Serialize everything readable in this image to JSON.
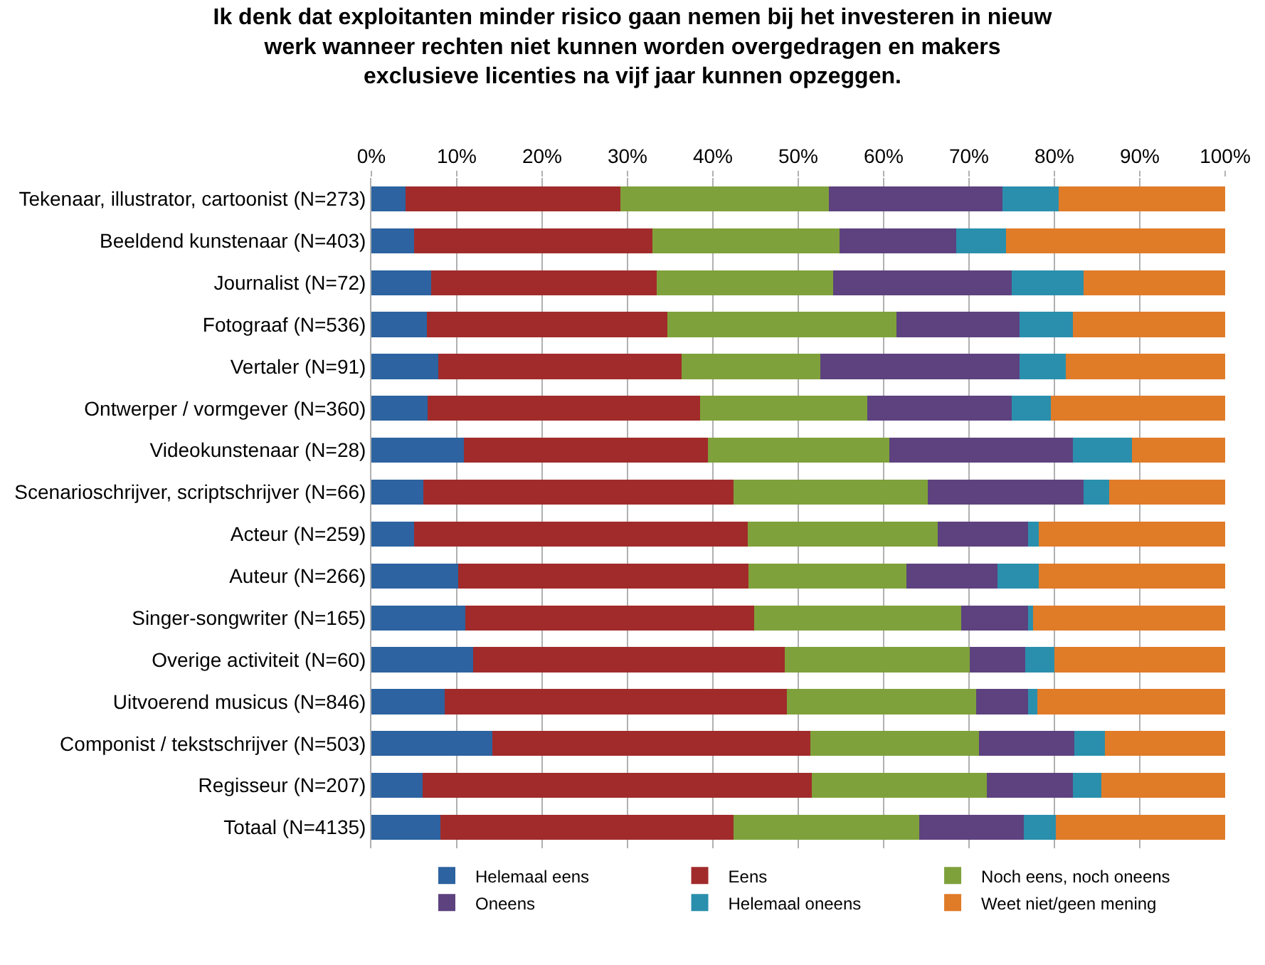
{
  "chart_data": {
    "type": "bar",
    "orientation": "horizontal",
    "stacked": true,
    "title": "Ik denk dat exploitanten minder risico gaan nemen bij het investeren in nieuw\nwerk wanneer rechten niet kunnen worden overgedragen en makers\nexclusieve licenties na vijf jaar kunnen opzeggen.",
    "categories": [
      "Tekenaar, illustrator, cartoonist (N=273)",
      "Beeldend kunstenaar (N=403)",
      "Journalist (N=72)",
      "Fotograaf (N=536)",
      "Vertaler (N=91)",
      "Ontwerper / vormgever (N=360)",
      "Videokunstenaar (N=28)",
      "Scenarioschrijver, scriptschrijver (N=66)",
      "Acteur (N=259)",
      "Auteur (N=266)",
      "Singer-songwriter (N=165)",
      "Overige activiteit (N=60)",
      "Uitvoerend musicus (N=846)",
      "Componist / tekstschrijver (N=503)",
      "Regisseur (N=207)",
      "Totaal (N=4135)"
    ],
    "series": [
      {
        "name": "Helemaal eens",
        "color": "#2c63a0",
        "values": [
          4.0,
          5.0,
          7.0,
          6.5,
          7.8,
          6.6,
          10.8,
          6.1,
          5.0,
          10.2,
          11.0,
          11.9,
          8.6,
          14.2,
          6.0,
          8.1
        ]
      },
      {
        "name": "Eens",
        "color": "#a12b2b",
        "values": [
          25.2,
          27.9,
          26.4,
          28.2,
          28.5,
          31.9,
          28.6,
          36.3,
          39.1,
          34.0,
          33.8,
          36.5,
          40.1,
          37.2,
          45.6,
          34.3
        ]
      },
      {
        "name": "Noch eens, noch oneens",
        "color": "#7fa13b",
        "values": [
          24.4,
          21.9,
          20.7,
          26.8,
          16.3,
          19.6,
          21.3,
          22.8,
          22.2,
          18.5,
          24.3,
          21.7,
          22.1,
          19.8,
          20.5,
          21.8
        ]
      },
      {
        "name": "Oneens",
        "color": "#5d427f",
        "values": [
          20.3,
          13.7,
          20.9,
          14.4,
          23.3,
          16.9,
          21.5,
          18.2,
          10.6,
          10.6,
          7.8,
          6.5,
          6.1,
          11.1,
          10.1,
          12.2
        ]
      },
      {
        "name": "Helemaal oneens",
        "color": "#2a8fad",
        "values": [
          6.6,
          5.8,
          8.4,
          6.3,
          5.4,
          4.6,
          6.9,
          3.0,
          1.3,
          4.9,
          0.6,
          3.4,
          1.1,
          3.6,
          3.3,
          3.8
        ]
      },
      {
        "name": "Weet niet/geen mening",
        "color": "#e07b28",
        "values": [
          19.5,
          25.7,
          16.6,
          17.8,
          18.7,
          20.4,
          10.9,
          13.6,
          21.8,
          21.8,
          22.5,
          20.0,
          22.0,
          14.1,
          14.5,
          19.8
        ]
      }
    ],
    "xlim": [
      0,
      100
    ],
    "xticks": [
      {
        "value": 0,
        "label": "0%"
      },
      {
        "value": 10,
        "label": "10%"
      },
      {
        "value": 20,
        "label": "20%"
      },
      {
        "value": 30,
        "label": "30%"
      },
      {
        "value": 40,
        "label": "40%"
      },
      {
        "value": 50,
        "label": "50%"
      },
      {
        "value": 60,
        "label": "60%"
      },
      {
        "value": 70,
        "label": "70%"
      },
      {
        "value": 80,
        "label": "80%"
      },
      {
        "value": 90,
        "label": "90%"
      },
      {
        "value": 100,
        "label": "100%"
      }
    ],
    "grid": "x",
    "legend": "bottom"
  }
}
